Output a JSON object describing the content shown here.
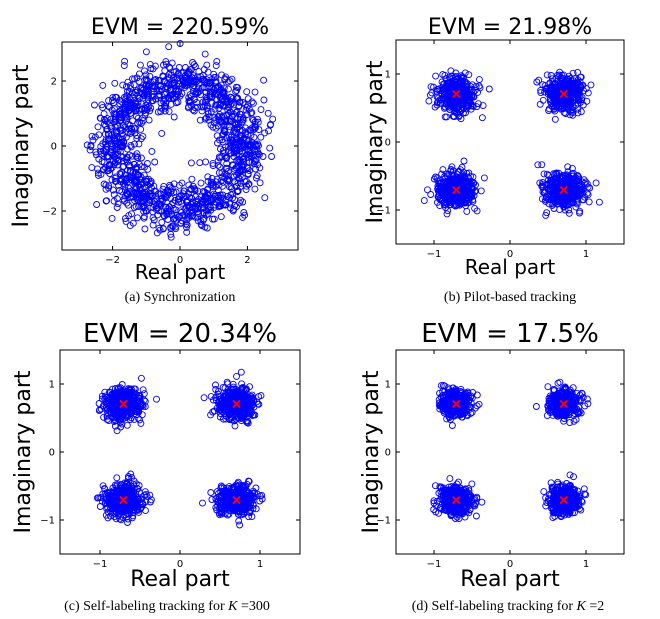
{
  "chart_data": [
    {
      "type": "scatter",
      "panel": "a",
      "title": "EVM = 220.59%",
      "xlabel": "Real part",
      "ylabel": "Imaginary part",
      "xlim": [
        -3.5,
        3.5
      ],
      "ylim": [
        -3.2,
        3.2
      ],
      "xticks": [
        -2,
        0,
        2
      ],
      "yticks": [
        -2,
        0,
        2
      ],
      "xticklabels": [
        "−2",
        "0",
        "2"
      ],
      "yticklabels": [
        "−2",
        "0",
        "2"
      ],
      "distribution": "ring",
      "ring_radius": 1.95,
      "ring_spread": 0.38,
      "point_count": 1400,
      "references": [],
      "caption": "(a) Synchronization"
    },
    {
      "type": "scatter",
      "panel": "b",
      "title": "EVM = 21.98%",
      "xlabel": "Real part",
      "ylabel": "Imaginary part",
      "xlim": [
        -1.5,
        1.5
      ],
      "ylim": [
        -1.5,
        1.5
      ],
      "xticks": [
        -1,
        0,
        1
      ],
      "yticks": [
        -1,
        0,
        1
      ],
      "xticklabels": [
        "−1",
        "0",
        "1"
      ],
      "yticklabels": [
        "−1",
        "0",
        "1"
      ],
      "distribution": "clusters",
      "cluster_spread": 0.13,
      "point_count": 1600,
      "references": [
        [
          0.707,
          0.707
        ],
        [
          -0.707,
          0.707
        ],
        [
          -0.707,
          -0.707
        ],
        [
          0.707,
          -0.707
        ]
      ],
      "caption": "(b) Pilot-based tracking"
    },
    {
      "type": "scatter",
      "panel": "c",
      "title": "EVM = 20.34%",
      "xlabel": "Real part",
      "ylabel": "Imaginary part",
      "xlim": [
        -1.5,
        1.5
      ],
      "ylim": [
        -1.5,
        1.5
      ],
      "xticks": [
        -1,
        0,
        1
      ],
      "yticks": [
        -1,
        0,
        1
      ],
      "xticklabels": [
        "−1",
        "0",
        "1"
      ],
      "yticklabels": [
        "−1",
        "0",
        "1"
      ],
      "distribution": "clusters",
      "cluster_spread": 0.12,
      "point_count": 1600,
      "references": [
        [
          0.707,
          0.707
        ],
        [
          -0.707,
          0.707
        ],
        [
          -0.707,
          -0.707
        ],
        [
          0.707,
          -0.707
        ]
      ],
      "caption_prefix": "(c) Self-labeling tracking for ",
      "caption_var": "K",
      "caption_suffix": " =300"
    },
    {
      "type": "scatter",
      "panel": "d",
      "title": "EVM = 17.5%",
      "xlabel": "Real part",
      "ylabel": "Imaginary part",
      "xlim": [
        -1.5,
        1.5
      ],
      "ylim": [
        -1.5,
        1.5
      ],
      "xticks": [
        -1,
        0,
        1
      ],
      "yticks": [
        -1,
        0,
        1
      ],
      "xticklabels": [
        "−1",
        "0",
        "1"
      ],
      "yticklabels": [
        "−1",
        "0",
        "1"
      ],
      "distribution": "clusters",
      "cluster_spread": 0.105,
      "point_count": 1600,
      "references": [
        [
          0.707,
          0.707
        ],
        [
          -0.707,
          0.707
        ],
        [
          -0.707,
          -0.707
        ],
        [
          0.707,
          -0.707
        ]
      ],
      "caption_prefix": "(d) Self-labeling tracking for ",
      "caption_var": "K",
      "caption_suffix": " =2"
    }
  ],
  "colors": {
    "points": "#0000ff",
    "reference": "#ff0000",
    "axes": "#000000"
  }
}
